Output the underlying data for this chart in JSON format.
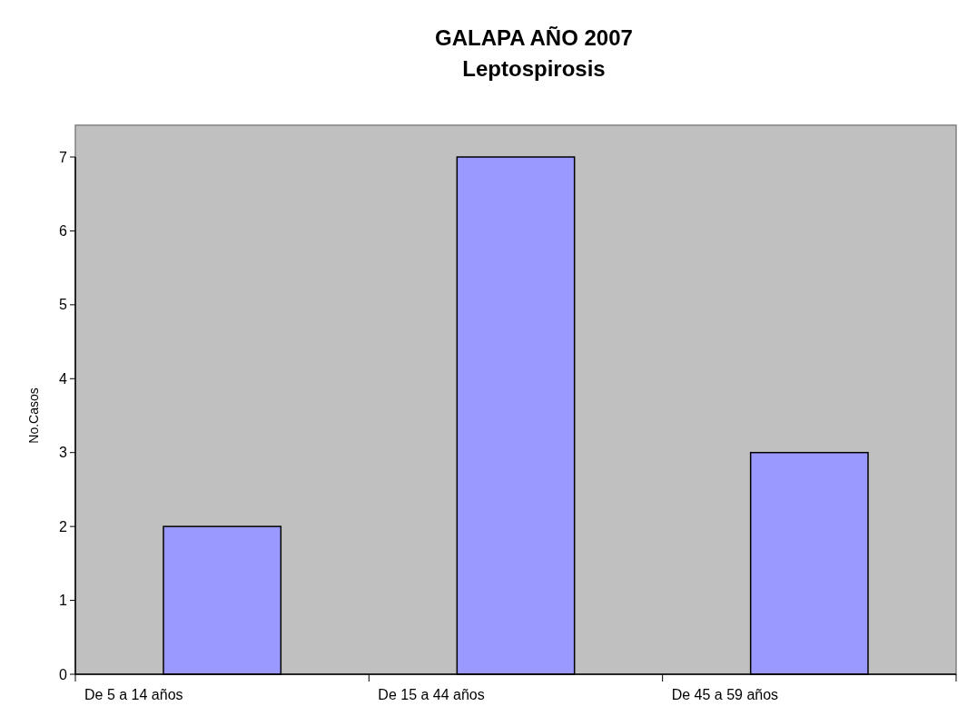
{
  "chart_data": {
    "type": "bar",
    "title": "GALAPA  AÑO 2007",
    "subtitle": "Leptospirosis",
    "ylabel": "No.Casos",
    "categories": [
      "De 5 a 14 años",
      "De 15 a 44 años",
      "De 45 a 59 años"
    ],
    "values": [
      2,
      7,
      3
    ],
    "color": "#9999ff",
    "ylim": [
      0,
      7
    ],
    "yticks": [
      0,
      1,
      2,
      3,
      4,
      5,
      6,
      7
    ],
    "grid": false
  }
}
